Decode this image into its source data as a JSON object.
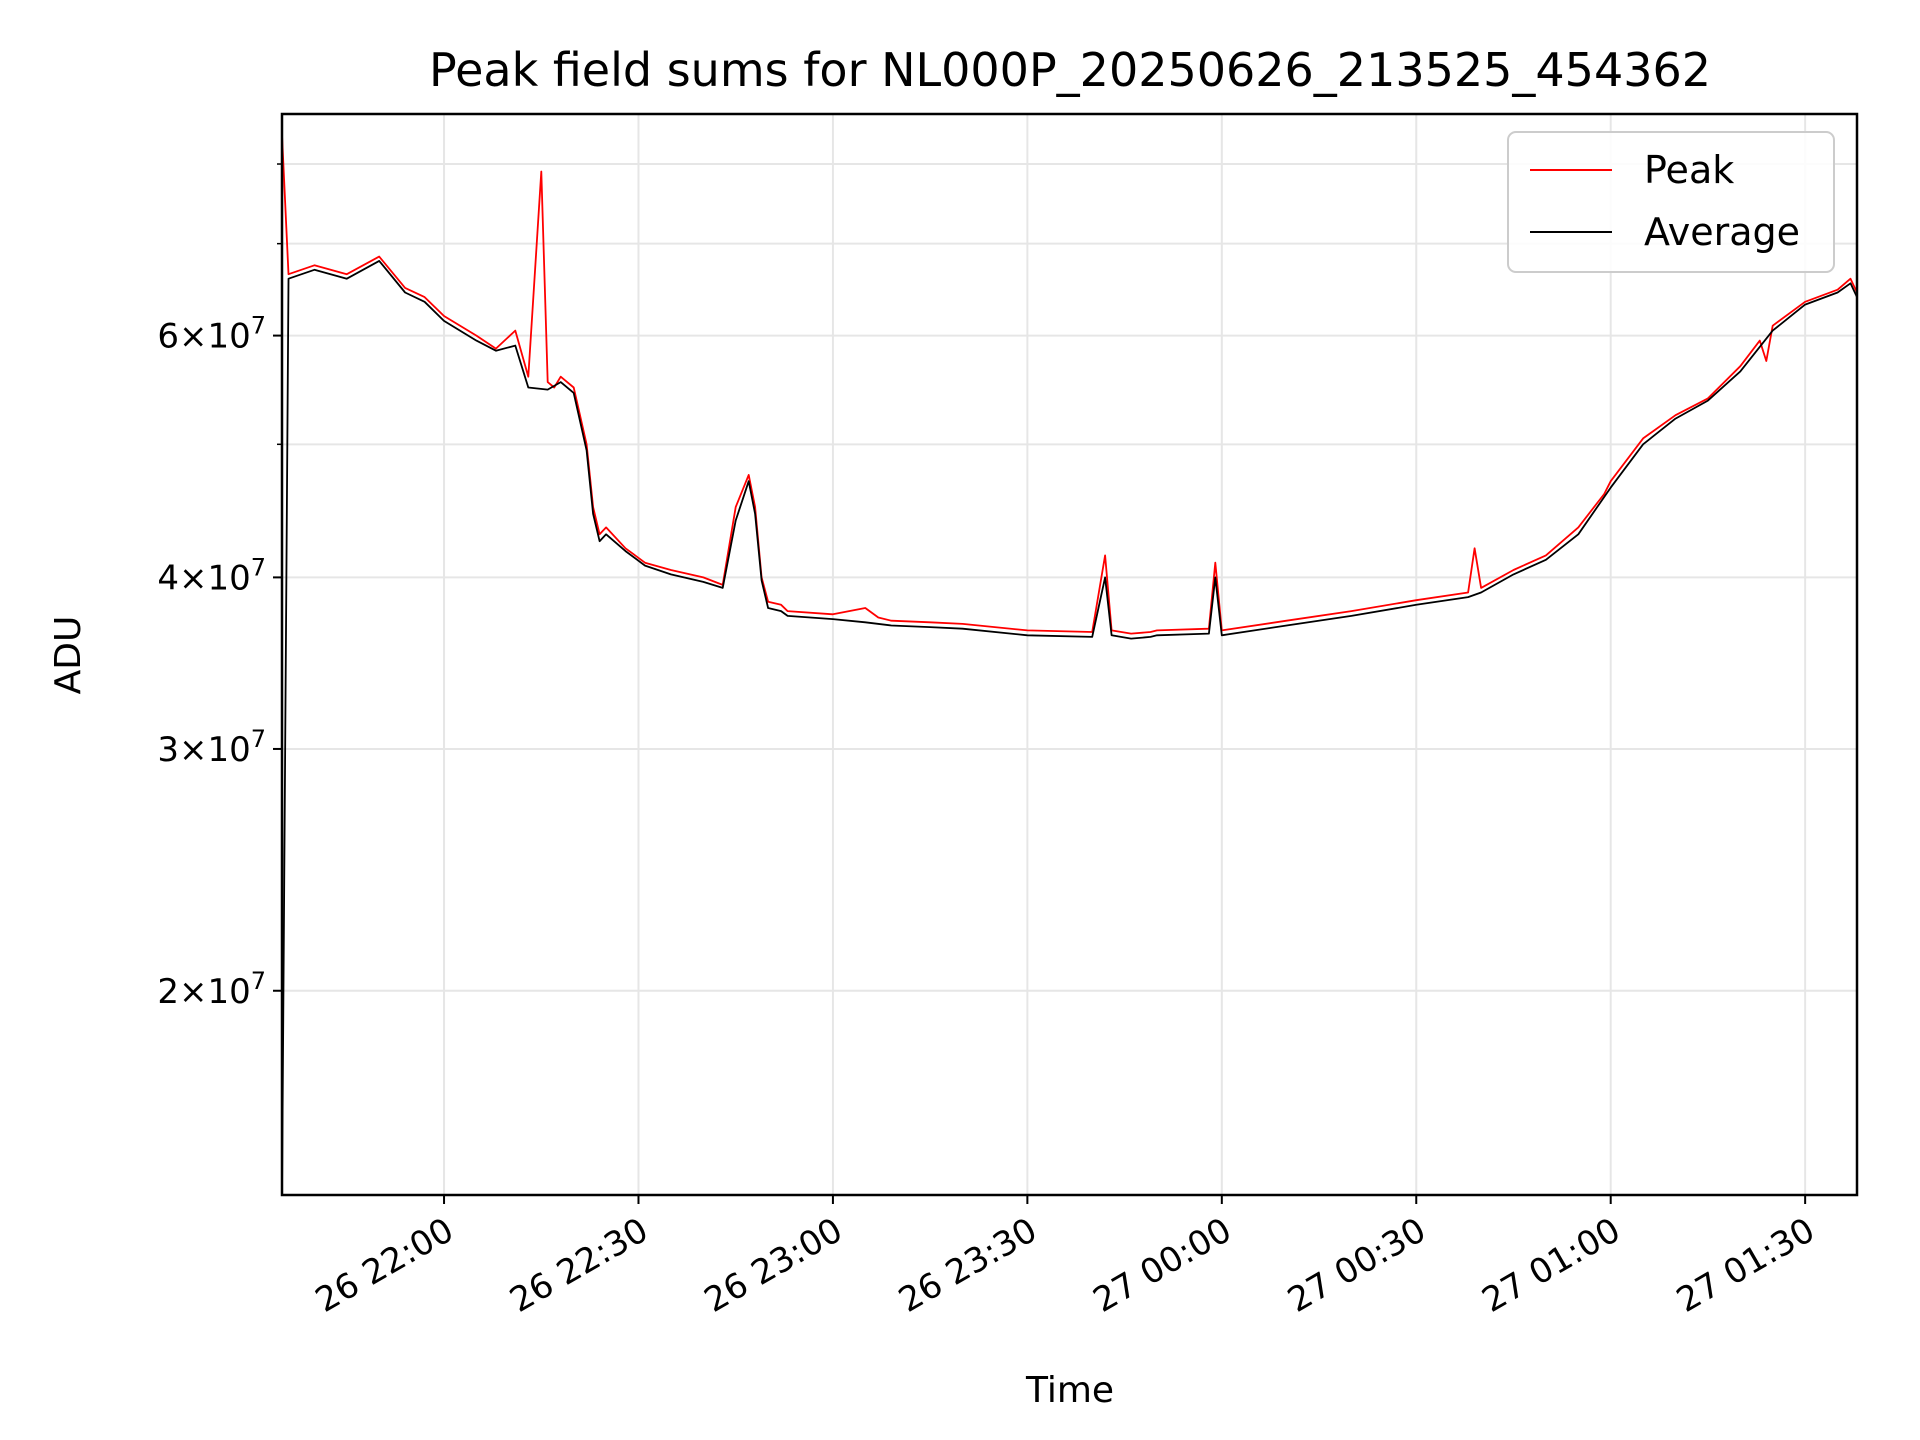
{
  "chart_data": {
    "type": "line",
    "title": "Peak field sums for NL000P_20250626_213525_454362",
    "xlabel": "Time",
    "ylabel": "ADU",
    "yscale": "log",
    "grid": true,
    "legend_position": "top-right",
    "xlim": [
      "2025-06-26 21:35",
      "2025-06-27 01:38"
    ],
    "ylim": [
      14200000,
      87000000
    ],
    "x_ticks": [
      "26 22:00",
      "26 22:30",
      "26 23:00",
      "26 23:30",
      "27 00:00",
      "27 00:30",
      "27 01:00",
      "27 01:30"
    ],
    "y_ticks": [
      {
        "value": 20000000,
        "label": "2×10^7"
      },
      {
        "value": 30000000,
        "label": "3×10^7"
      },
      {
        "value": 40000000,
        "label": "4×10^7"
      },
      {
        "value": 60000000,
        "label": "6×10^7"
      }
    ],
    "series": [
      {
        "name": "Peak",
        "color": "#ff0000",
        "x": [
          "2025-06-26 21:35",
          "2025-06-26 21:36",
          "2025-06-26 21:40",
          "2025-06-26 21:45",
          "2025-06-26 21:50",
          "2025-06-26 21:54",
          "2025-06-26 21:57",
          "2025-06-26 22:00",
          "2025-06-26 22:05",
          "2025-06-26 22:08",
          "2025-06-26 22:11",
          "2025-06-26 22:13",
          "2025-06-26 22:15",
          "2025-06-26 22:16",
          "2025-06-26 22:17",
          "2025-06-26 22:18",
          "2025-06-26 22:20",
          "2025-06-26 22:22",
          "2025-06-26 22:23",
          "2025-06-26 22:24",
          "2025-06-26 22:25",
          "2025-06-26 22:28",
          "2025-06-26 22:31",
          "2025-06-26 22:35",
          "2025-06-26 22:40",
          "2025-06-26 22:43",
          "2025-06-26 22:45",
          "2025-06-26 22:47",
          "2025-06-26 22:48",
          "2025-06-26 22:49",
          "2025-06-26 22:50",
          "2025-06-26 22:52",
          "2025-06-26 22:53",
          "2025-06-26 23:00",
          "2025-06-26 23:05",
          "2025-06-26 23:07",
          "2025-06-26 23:09",
          "2025-06-26 23:15",
          "2025-06-26 23:20",
          "2025-06-26 23:30",
          "2025-06-26 23:40",
          "2025-06-26 23:42",
          "2025-06-26 23:43",
          "2025-06-26 23:46",
          "2025-06-26 23:49",
          "2025-06-26 23:50",
          "2025-06-26 23:58",
          "2025-06-26 23:59",
          "2025-06-27 00:00",
          "2025-06-27 00:10",
          "2025-06-27 00:20",
          "2025-06-27 00:30",
          "2025-06-27 00:38",
          "2025-06-27 00:39",
          "2025-06-27 00:40",
          "2025-06-27 00:45",
          "2025-06-27 00:50",
          "2025-06-27 00:55",
          "2025-06-27 00:59",
          "2025-06-27 01:00",
          "2025-06-27 01:05",
          "2025-06-27 01:10",
          "2025-06-27 01:15",
          "2025-06-27 01:20",
          "2025-06-27 01:23",
          "2025-06-27 01:24",
          "2025-06-27 01:25",
          "2025-06-27 01:30",
          "2025-06-27 01:35",
          "2025-06-27 01:37",
          "2025-06-27 01:38"
        ],
        "y": [
          84000000,
          66500000,
          67500000,
          66500000,
          68500000,
          65000000,
          64000000,
          62000000,
          60000000,
          58700000,
          60500000,
          56000000,
          79000000,
          55500000,
          55000000,
          56000000,
          55000000,
          50000000,
          45000000,
          43000000,
          43500000,
          42000000,
          41000000,
          40500000,
          40000000,
          39500000,
          45000000,
          47500000,
          45000000,
          40000000,
          38400000,
          38200000,
          37800000,
          37600000,
          38000000,
          37400000,
          37200000,
          37100000,
          37000000,
          36600000,
          36500000,
          41500000,
          36600000,
          36400000,
          36500000,
          36600000,
          36700000,
          41000000,
          36600000,
          37200000,
          37800000,
          38500000,
          39000000,
          42000000,
          39300000,
          40500000,
          41500000,
          43500000,
          46000000,
          47000000,
          50500000,
          52500000,
          54000000,
          57000000,
          59500000,
          57500000,
          61000000,
          63500000,
          64800000,
          66000000,
          64500000
        ]
      },
      {
        "name": "Average",
        "color": "#000000",
        "x": [
          "2025-06-26 21:35",
          "2025-06-26 21:36",
          "2025-06-26 21:40",
          "2025-06-26 21:45",
          "2025-06-26 21:50",
          "2025-06-26 21:54",
          "2025-06-26 21:57",
          "2025-06-26 22:00",
          "2025-06-26 22:05",
          "2025-06-26 22:08",
          "2025-06-26 22:11",
          "2025-06-26 22:13",
          "2025-06-26 22:16",
          "2025-06-26 22:18",
          "2025-06-26 22:20",
          "2025-06-26 22:22",
          "2025-06-26 22:23",
          "2025-06-26 22:24",
          "2025-06-26 22:25",
          "2025-06-26 22:28",
          "2025-06-26 22:31",
          "2025-06-26 22:35",
          "2025-06-26 22:40",
          "2025-06-26 22:43",
          "2025-06-26 22:45",
          "2025-06-26 22:47",
          "2025-06-26 22:48",
          "2025-06-26 22:49",
          "2025-06-26 22:50",
          "2025-06-26 22:52",
          "2025-06-26 22:53",
          "2025-06-26 23:00",
          "2025-06-26 23:05",
          "2025-06-26 23:09",
          "2025-06-26 23:15",
          "2025-06-26 23:20",
          "2025-06-26 23:30",
          "2025-06-26 23:40",
          "2025-06-26 23:42",
          "2025-06-26 23:43",
          "2025-06-26 23:46",
          "2025-06-26 23:49",
          "2025-06-26 23:50",
          "2025-06-26 23:58",
          "2025-06-26 23:59",
          "2025-06-27 00:00",
          "2025-06-27 00:10",
          "2025-06-27 00:20",
          "2025-06-27 00:30",
          "2025-06-27 00:38",
          "2025-06-27 00:40",
          "2025-06-27 00:45",
          "2025-06-27 00:50",
          "2025-06-27 00:55",
          "2025-06-27 01:00",
          "2025-06-27 01:05",
          "2025-06-27 01:10",
          "2025-06-27 01:15",
          "2025-06-27 01:20",
          "2025-06-27 01:25",
          "2025-06-27 01:30",
          "2025-06-27 01:35",
          "2025-06-27 01:37",
          "2025-06-27 01:38"
        ],
        "y": [
          14200000,
          66000000,
          67000000,
          66000000,
          68000000,
          64500000,
          63500000,
          61500000,
          59500000,
          58500000,
          59000000,
          55000000,
          54800000,
          55500000,
          54500000,
          49500000,
          44500000,
          42500000,
          43000000,
          41800000,
          40800000,
          40200000,
          39700000,
          39300000,
          44000000,
          47000000,
          44500000,
          39800000,
          38000000,
          37800000,
          37500000,
          37300000,
          37100000,
          36900000,
          36800000,
          36700000,
          36300000,
          36200000,
          40000000,
          36300000,
          36100000,
          36200000,
          36300000,
          36400000,
          40000000,
          36300000,
          36900000,
          37500000,
          38200000,
          38700000,
          39000000,
          40200000,
          41200000,
          43000000,
          46500000,
          50000000,
          52200000,
          53800000,
          56500000,
          60500000,
          63200000,
          64500000,
          65500000,
          64000000
        ]
      }
    ]
  }
}
